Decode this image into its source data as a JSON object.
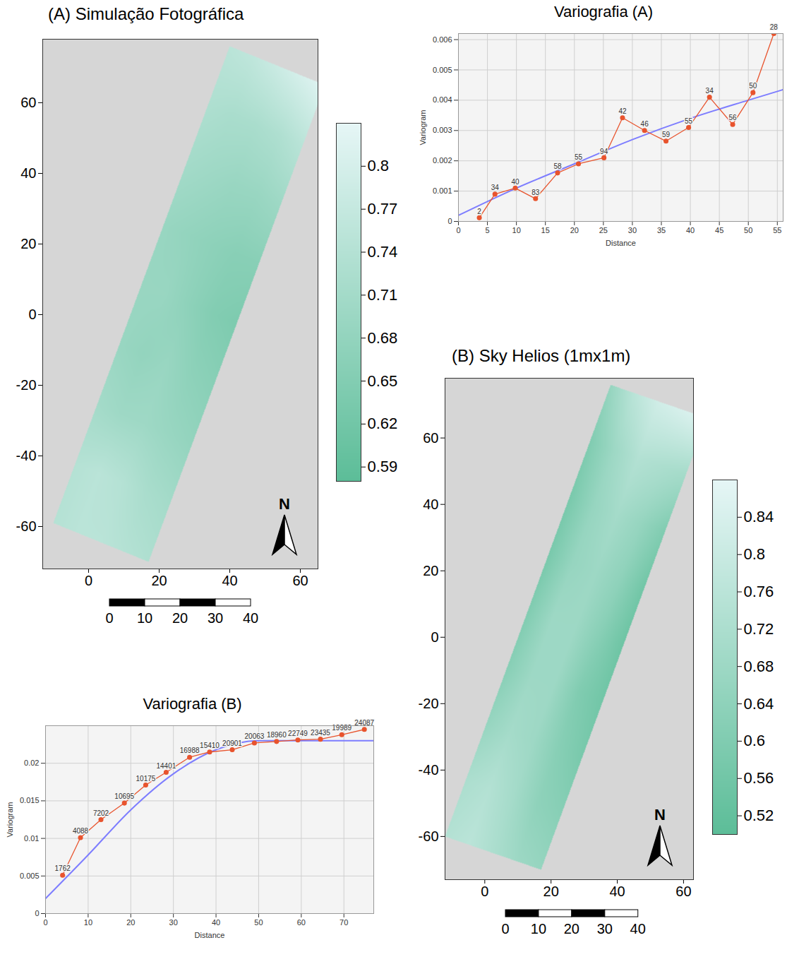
{
  "chart_data": [
    {
      "type": "map",
      "title": "(A) Simulação Fotográfica",
      "xlim": [
        -13,
        65
      ],
      "xticks": [
        0,
        20,
        40,
        60
      ],
      "ylim": [
        -72,
        78
      ],
      "yticks": [
        -60,
        -40,
        -20,
        0,
        20,
        40,
        60
      ],
      "field": {
        "sw": [
          -10,
          -59
        ],
        "se": [
          17,
          -70
        ],
        "nw": [
          40,
          76
        ],
        "values": [
          [
            0.74,
            0.75,
            0.75,
            0.74,
            0.73
          ],
          [
            0.74,
            0.75,
            0.74,
            0.72,
            0.71
          ],
          [
            0.71,
            0.7,
            0.7,
            0.69,
            0.68
          ],
          [
            0.69,
            0.68,
            0.69,
            0.67,
            0.66
          ],
          [
            0.69,
            0.69,
            0.67,
            0.65,
            0.64
          ],
          [
            0.69,
            0.68,
            0.67,
            0.66,
            0.66
          ],
          [
            0.71,
            0.7,
            0.69,
            0.69,
            0.7
          ],
          [
            0.73,
            0.72,
            0.72,
            0.73,
            0.75
          ],
          [
            0.75,
            0.76,
            0.78,
            0.8,
            0.82
          ]
        ]
      },
      "colorbar": {
        "range": [
          0.58,
          0.83
        ],
        "ticks": [
          0.59,
          0.62,
          0.65,
          0.68,
          0.71,
          0.74,
          0.77,
          0.8
        ],
        "colors": [
          "#5cbd98",
          "#e6f6f6"
        ]
      },
      "north_label": "N",
      "scale_bar": {
        "ticks": [
          0,
          10,
          20,
          30,
          40
        ]
      }
    },
    {
      "type": "line",
      "title": "Variografia (A)",
      "x_label": "Distance",
      "y_label": "Variogram",
      "xlim": [
        0,
        56
      ],
      "xticks": [
        0,
        5,
        10,
        15,
        20,
        25,
        30,
        35,
        40,
        45,
        50,
        55
      ],
      "ylim": [
        0,
        0.0062
      ],
      "yticks": [
        0,
        0.001,
        0.002,
        0.003,
        0.004,
        0.005,
        0.006
      ],
      "grid": true,
      "series": [
        {
          "type": "line",
          "marker": "none",
          "color": "#7d7dff",
          "x": [
            0,
            10,
            20,
            30,
            40,
            50,
            56
          ],
          "values": [
            0.0002,
            0.0011,
            0.0019,
            0.0027,
            0.0034,
            0.004,
            0.00435
          ]
        },
        {
          "type": "line",
          "marker": "circle",
          "color": "#e8542e",
          "x": [
            3.6,
            6.3,
            9.8,
            13.3,
            17.1,
            20.7,
            25.1,
            28.3,
            32.1,
            35.8,
            39.7,
            43.3,
            47.3,
            50.8,
            54.4
          ],
          "values": [
            0.00012,
            0.0009,
            0.0011,
            0.00075,
            0.0016,
            0.0019,
            0.0021,
            0.00342,
            0.003,
            0.00265,
            0.0031,
            0.0041,
            0.0032,
            0.00425,
            0.0062
          ],
          "point_labels": [
            "2",
            "34",
            "40",
            "83",
            "58",
            "55",
            "94",
            "42",
            "46",
            "59",
            "55",
            "34",
            "56",
            "50",
            "28"
          ]
        }
      ]
    },
    {
      "type": "map",
      "title": "(B) Sky Helios (1mx1m)",
      "xlim": [
        -12,
        63
      ],
      "xticks": [
        0,
        20,
        40,
        60
      ],
      "ylim": [
        -73,
        78
      ],
      "yticks": [
        -60,
        -40,
        -20,
        0,
        20,
        40,
        60
      ],
      "field": {
        "sw": [
          -12,
          -60
        ],
        "se": [
          17,
          -70
        ],
        "nw": [
          38,
          76
        ],
        "values": [
          [
            0.74,
            0.76,
            0.72,
            0.68,
            0.66
          ],
          [
            0.72,
            0.74,
            0.7,
            0.64,
            0.62
          ],
          [
            0.66,
            0.7,
            0.68,
            0.62,
            0.58
          ],
          [
            0.62,
            0.68,
            0.68,
            0.6,
            0.56
          ],
          [
            0.6,
            0.68,
            0.68,
            0.62,
            0.55
          ],
          [
            0.58,
            0.66,
            0.68,
            0.64,
            0.56
          ],
          [
            0.58,
            0.66,
            0.7,
            0.66,
            0.6
          ],
          [
            0.6,
            0.68,
            0.74,
            0.72,
            0.7
          ],
          [
            0.66,
            0.76,
            0.82,
            0.84,
            0.86
          ]
        ]
      },
      "colorbar": {
        "range": [
          0.5,
          0.88
        ],
        "ticks": [
          0.52,
          0.56,
          0.6,
          0.64,
          0.68,
          0.72,
          0.76,
          0.8,
          0.84
        ],
        "colors": [
          "#5cbd98",
          "#e6f6f6"
        ]
      },
      "north_label": "N",
      "scale_bar": {
        "ticks": [
          0,
          10,
          20,
          30,
          40
        ]
      }
    },
    {
      "type": "line",
      "title": "Variografia (B)",
      "x_label": "Distance",
      "y_label": "Variogram",
      "xlim": [
        0,
        77
      ],
      "xticks": [
        0,
        10,
        20,
        30,
        40,
        50,
        60,
        70
      ],
      "ylim": [
        0,
        0.025
      ],
      "yticks": [
        0,
        0.005,
        0.01,
        0.015,
        0.02
      ],
      "grid": true,
      "series": [
        {
          "type": "line",
          "marker": "none",
          "color": "#7d7dff",
          "x": [
            0,
            10,
            20,
            30,
            40,
            50,
            77
          ],
          "values": [
            0.002,
            0.0078,
            0.0138,
            0.0186,
            0.0218,
            0.023,
            0.023
          ]
        },
        {
          "type": "line",
          "marker": "circle",
          "color": "#e8542e",
          "x": [
            4,
            8.2,
            13,
            18.5,
            23.5,
            28.3,
            33.8,
            38.5,
            43.8,
            49,
            54.2,
            59.2,
            64.5,
            69.5,
            74.8
          ],
          "values": [
            0.0051,
            0.0101,
            0.0125,
            0.0147,
            0.0171,
            0.0188,
            0.0208,
            0.0215,
            0.0218,
            0.0227,
            0.0229,
            0.0231,
            0.0232,
            0.0238,
            0.0245
          ],
          "point_labels": [
            "1762",
            "4088",
            "7202",
            "10695",
            "10175",
            "14401",
            "16988",
            "15410",
            "20901",
            "20063",
            "18960",
            "22749",
            "23435",
            "19989",
            "24087"
          ]
        }
      ]
    }
  ]
}
